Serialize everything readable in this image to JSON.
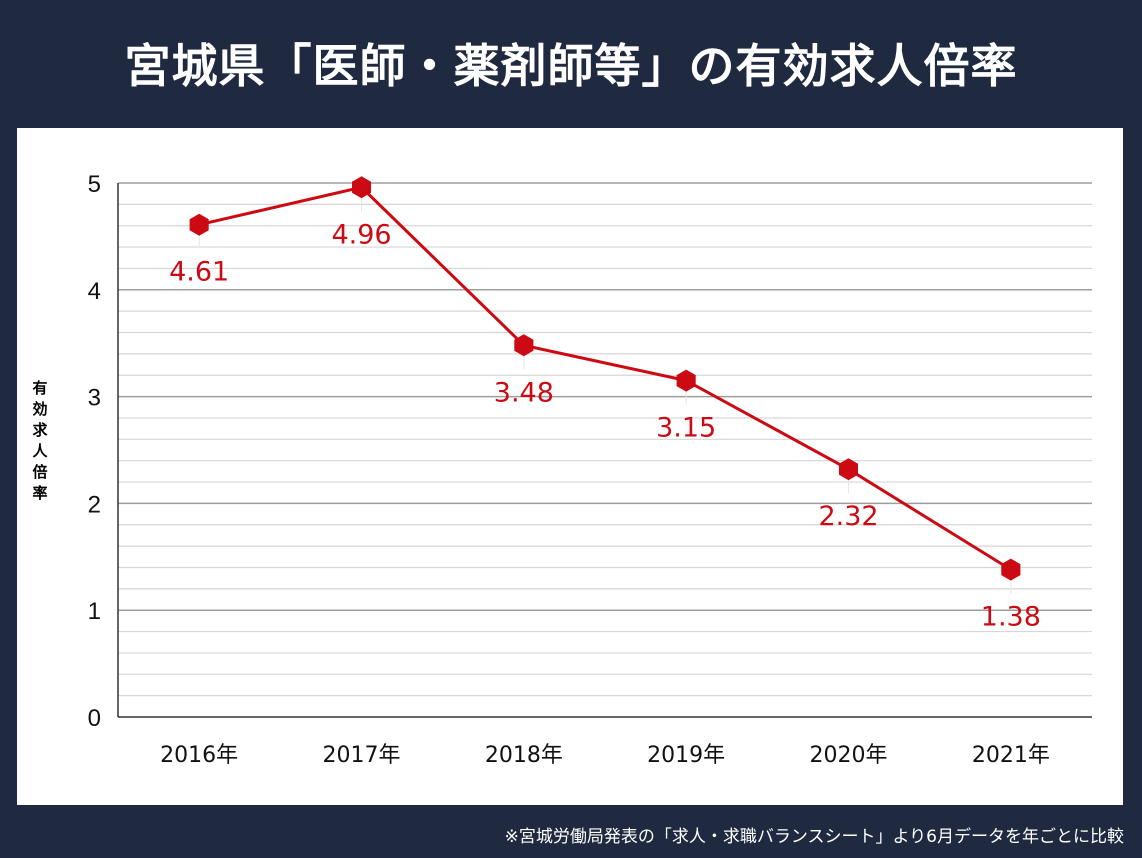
{
  "title": "宮城県「医師・薬剤師等」の有効求人倍率",
  "footnote": "※宮城労働局発表の「求人・求職バランスシート」より6月データを年ごとに比較",
  "chart_data": {
    "type": "line",
    "categories": [
      "2016年",
      "2017年",
      "2018年",
      "2019年",
      "2020年",
      "2021年"
    ],
    "series": [
      {
        "values": [
          4.61,
          4.96,
          3.48,
          3.15,
          2.32,
          1.38
        ],
        "color": "#cc0a14"
      }
    ],
    "data_labels": [
      "4.61",
      "4.96",
      "3.48",
      "3.15",
      "2.32",
      "1.38"
    ],
    "ylabel": "有効求人倍率",
    "ylim": [
      0,
      5
    ],
    "yticks": [
      "0",
      "1",
      "2",
      "3",
      "4",
      "5"
    ],
    "grid": true,
    "minor_grid_step": 0.2,
    "marker": "hexagon"
  }
}
